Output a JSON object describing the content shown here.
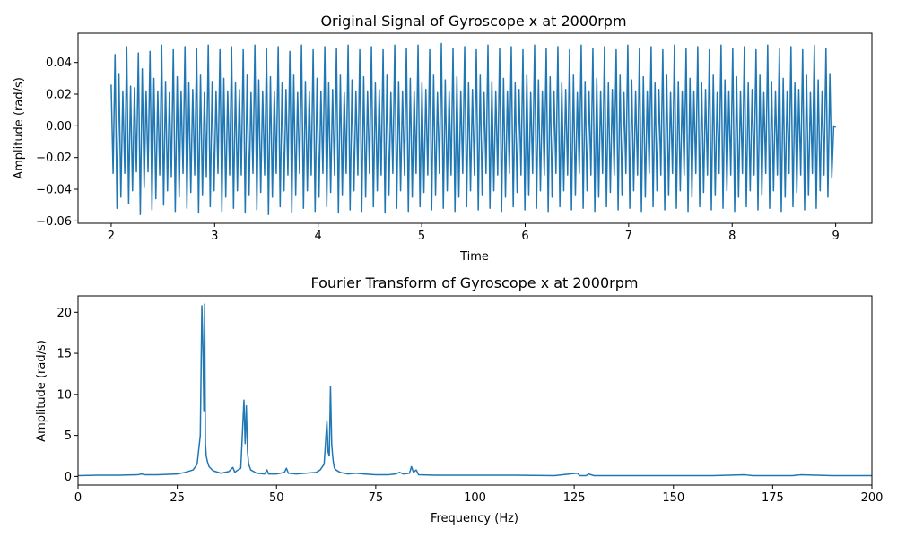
{
  "chart_data": [
    {
      "type": "line",
      "title": "Original Signal of Gyroscope x at 2000rpm",
      "xlabel": "Time",
      "ylabel": "Amplitude (rad/s)",
      "xlim": [
        1.68,
        9.35
      ],
      "ylim": [
        -0.0615,
        0.0585
      ],
      "x_ticks": [
        2,
        3,
        4,
        5,
        6,
        7,
        8,
        9
      ],
      "x_tick_labels": [
        "2",
        "3",
        "4",
        "5",
        "6",
        "7",
        "8",
        "9"
      ],
      "y_ticks": [
        0.04,
        0.02,
        0.0,
        -0.02,
        -0.04,
        -0.06
      ],
      "y_tick_labels": [
        "0.04",
        "0.02",
        "0.00",
        "−0.02",
        "−0.04",
        "−0.06"
      ],
      "grid": false,
      "line_color": "#1f77b4",
      "series": [
        {
          "x_start": 2.0,
          "x_end": 9.0,
          "samples": [
            0.026,
            -0.03,
            0.045,
            -0.052,
            0.033,
            -0.045,
            0.022,
            -0.03,
            0.05,
            -0.049,
            0.025,
            -0.041,
            0.024,
            -0.029,
            0.046,
            -0.056,
            0.036,
            -0.039,
            0.022,
            -0.029,
            0.047,
            -0.053,
            0.03,
            -0.046,
            0.022,
            -0.031,
            0.051,
            -0.05,
            0.028,
            -0.041,
            0.021,
            -0.032,
            0.048,
            -0.054,
            0.031,
            -0.045,
            0.022,
            -0.03,
            0.05,
            -0.052,
            0.027,
            -0.042,
            0.023,
            -0.031,
            0.049,
            -0.055,
            0.032,
            -0.044,
            0.021,
            -0.032,
            0.051,
            -0.051,
            0.028,
            -0.041,
            0.022,
            -0.03,
            0.048,
            -0.054,
            0.03,
            -0.045,
            0.022,
            -0.031,
            0.05,
            -0.052,
            0.027,
            -0.041,
            0.023,
            -0.031,
            0.048,
            -0.055,
            0.032,
            -0.044,
            0.021,
            -0.03,
            0.051,
            -0.053,
            0.029,
            -0.042,
            0.022,
            -0.031,
            0.049,
            -0.056,
            0.031,
            -0.045,
            0.022,
            -0.03,
            0.05,
            -0.051,
            0.027,
            -0.041,
            0.023,
            -0.031,
            0.047,
            -0.055,
            0.032,
            -0.044,
            0.021,
            -0.03,
            0.051,
            -0.052,
            0.028,
            -0.041,
            0.022,
            -0.031,
            0.048,
            -0.054,
            0.03,
            -0.045,
            0.022,
            -0.03,
            0.05,
            -0.051,
            0.027,
            -0.042,
            0.023,
            -0.031,
            0.049,
            -0.055,
            0.032,
            -0.044,
            0.021,
            -0.03,
            0.051,
            -0.053,
            0.029,
            -0.041,
            0.022,
            -0.031,
            0.048,
            -0.054,
            0.031,
            -0.045,
            0.022,
            -0.03,
            0.05,
            -0.051,
            0.027,
            -0.041,
            0.023,
            -0.031,
            0.048,
            -0.055,
            0.032,
            -0.044,
            0.021,
            -0.03,
            0.051,
            -0.052,
            0.028,
            -0.041,
            0.022,
            -0.031,
            0.049,
            -0.054,
            0.03,
            -0.045,
            0.022,
            -0.03,
            0.051,
            -0.051,
            0.027,
            -0.042,
            0.023,
            -0.031,
            0.048,
            -0.053,
            0.032,
            -0.044,
            0.021,
            -0.03,
            0.052,
            -0.052,
            0.029,
            -0.041,
            0.022,
            -0.031,
            0.049,
            -0.054,
            0.031,
            -0.045,
            0.022,
            -0.03,
            0.05,
            -0.051,
            0.027,
            -0.041,
            0.023,
            -0.031,
            0.048,
            -0.053,
            0.032,
            -0.044,
            0.021,
            -0.03,
            0.051,
            -0.052,
            0.028,
            -0.041,
            0.022,
            -0.031,
            0.049,
            -0.054,
            0.03,
            -0.045,
            0.022,
            -0.03,
            0.05,
            -0.051,
            0.027,
            -0.042,
            0.023,
            -0.031,
            0.048,
            -0.053,
            0.032,
            -0.044,
            0.021,
            -0.03,
            0.051,
            -0.052,
            0.029,
            -0.041,
            0.022,
            -0.031,
            0.049,
            -0.054,
            0.031,
            -0.045,
            0.022,
            -0.03,
            0.05,
            -0.051,
            0.027,
            -0.041,
            0.023,
            -0.031,
            0.048,
            -0.053,
            0.032,
            -0.044,
            0.021,
            -0.03,
            0.051,
            -0.052,
            0.028,
            -0.041,
            0.022,
            -0.031,
            0.049,
            -0.054,
            0.03,
            -0.045,
            0.022,
            -0.03,
            0.05,
            -0.051,
            0.027,
            -0.042,
            0.023,
            -0.031,
            0.048,
            -0.053,
            0.032,
            -0.044,
            0.021,
            -0.03,
            0.051,
            -0.052,
            0.029,
            -0.041,
            0.022,
            -0.031,
            0.049,
            -0.054,
            0.031,
            -0.045,
            0.022,
            -0.03,
            0.05,
            -0.051,
            0.027,
            -0.041,
            0.023,
            -0.031,
            0.048,
            -0.053,
            0.032,
            -0.044,
            0.021,
            -0.03,
            0.051,
            -0.052,
            0.028,
            -0.041,
            0.022,
            -0.031,
            0.049,
            -0.054,
            0.03,
            -0.045,
            0.022,
            -0.03,
            0.05,
            -0.051,
            0.027,
            -0.042,
            0.023,
            -0.031,
            0.048,
            -0.053,
            0.032,
            -0.044,
            0.021,
            -0.03,
            0.051,
            -0.052,
            0.029,
            -0.041,
            0.022,
            -0.031,
            0.049,
            -0.054,
            0.031,
            -0.045,
            0.022,
            -0.03,
            0.05,
            -0.051,
            0.027,
            -0.041,
            0.023,
            -0.031,
            0.048,
            -0.053,
            0.032,
            -0.044,
            0.021,
            -0.03,
            0.051,
            -0.052,
            0.028,
            -0.041,
            0.022,
            -0.031,
            0.049,
            -0.054,
            0.03,
            -0.045,
            0.022,
            -0.03,
            0.05,
            -0.051,
            0.027,
            -0.042,
            0.023,
            -0.031,
            0.048,
            -0.053,
            0.032,
            -0.044,
            0.021,
            -0.03,
            0.051,
            -0.052,
            0.029,
            -0.041,
            0.022,
            -0.031,
            0.049,
            -0.045,
            0.033,
            -0.033,
            0.0,
            -0.001
          ]
        }
      ]
    },
    {
      "type": "line",
      "title": "Fourier Transform of Gyroscope x at 2000rpm",
      "xlabel": "Frequency (Hz)",
      "ylabel": "Amplitude  (rad/s)",
      "xlim": [
        0,
        200
      ],
      "ylim": [
        -1.05,
        22.0
      ],
      "x_ticks": [
        0,
        25,
        50,
        75,
        100,
        125,
        150,
        175,
        200
      ],
      "x_tick_labels": [
        "0",
        "25",
        "50",
        "75",
        "100",
        "125",
        "150",
        "175",
        "200"
      ],
      "y_ticks": [
        0,
        5,
        10,
        15,
        20
      ],
      "y_tick_labels": [
        "0",
        "5",
        "10",
        "15",
        "20"
      ],
      "grid": false,
      "line_color": "#1f77b4",
      "series": [
        {
          "x": [
            0,
            5,
            10,
            15,
            16,
            17,
            20,
            25,
            27,
            29,
            30,
            30.8,
            31.2,
            31.5,
            31.7,
            31.9,
            32.0,
            32.1,
            32.3,
            32.6,
            33.0,
            34.0,
            36.0,
            38.0,
            39.0,
            39.5,
            40.0,
            41.0,
            41.8,
            42.1,
            42.4,
            42.7,
            43.0,
            43.5,
            45.0,
            47.0,
            47.6,
            48.0,
            50.0,
            52.0,
            52.5,
            53.0,
            55.0,
            60.0,
            61.0,
            62.0,
            62.7,
            63.0,
            63.3,
            63.6,
            63.9,
            64.1,
            64.3,
            64.6,
            65.0,
            66.0,
            68.0,
            70.0,
            72.0,
            75.0,
            78.0,
            80.0,
            81.0,
            82.0,
            83.5,
            84.0,
            84.5,
            85.2,
            85.8,
            90.0,
            100.0,
            110.0,
            120.0,
            125.8,
            126.4,
            128.0,
            128.6,
            130.0,
            140.0,
            150.0,
            160.0,
            168.0,
            170.0,
            180.0,
            182.0,
            190.0,
            200.0
          ],
          "values": [
            0.1,
            0.15,
            0.15,
            0.2,
            0.3,
            0.2,
            0.2,
            0.3,
            0.5,
            0.8,
            1.5,
            5.0,
            20.8,
            15.0,
            8.0,
            21.0,
            12.0,
            4.0,
            2.5,
            1.8,
            1.2,
            0.7,
            0.4,
            0.6,
            1.1,
            0.5,
            0.7,
            1.0,
            9.3,
            4.0,
            8.6,
            3.0,
            1.5,
            0.8,
            0.4,
            0.3,
            0.8,
            0.3,
            0.3,
            0.5,
            1.0,
            0.4,
            0.3,
            0.5,
            0.8,
            1.5,
            6.8,
            3.0,
            2.5,
            11.0,
            4.0,
            2.8,
            1.8,
            1.0,
            0.8,
            0.5,
            0.3,
            0.4,
            0.3,
            0.2,
            0.2,
            0.3,
            0.5,
            0.3,
            0.4,
            1.2,
            0.5,
            0.8,
            0.2,
            0.15,
            0.15,
            0.15,
            0.1,
            0.4,
            0.1,
            0.1,
            0.3,
            0.1,
            0.1,
            0.1,
            0.1,
            0.2,
            0.1,
            0.1,
            0.2,
            0.1,
            0.1
          ]
        }
      ]
    }
  ]
}
